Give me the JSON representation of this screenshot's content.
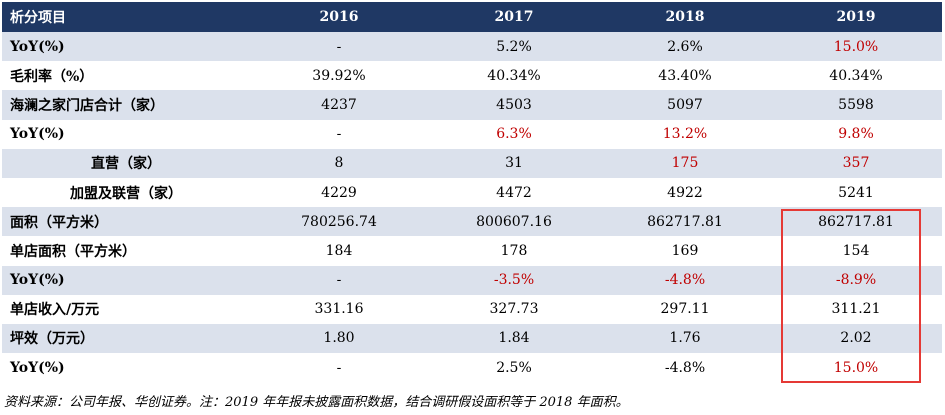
{
  "table": {
    "headers": [
      "析分项目",
      "2016",
      "2017",
      "2018",
      "2019"
    ],
    "rows": [
      {
        "label": "YoY(%)",
        "cells": [
          "-",
          "5.2%",
          "2.6%",
          "15.0%"
        ],
        "red": [
          false,
          false,
          false,
          true
        ]
      },
      {
        "label": "毛利率（%）",
        "cells": [
          "39.92%",
          "40.34%",
          "43.40%",
          "40.34%"
        ],
        "red": [
          false,
          false,
          false,
          false
        ]
      },
      {
        "label": "海澜之家门店合计（家）",
        "cells": [
          "4237",
          "4503",
          "5097",
          "5598"
        ],
        "red": [
          false,
          false,
          false,
          false
        ]
      },
      {
        "label": "YoY(%)",
        "cells": [
          "-",
          "6.3%",
          "13.2%",
          "9.8%"
        ],
        "red": [
          false,
          true,
          true,
          true
        ]
      },
      {
        "label": "直营（家）",
        "cells": [
          "8",
          "31",
          "175",
          "357"
        ],
        "red": [
          false,
          false,
          true,
          true
        ]
      },
      {
        "label": "加盟及联营（家）",
        "cells": [
          "4229",
          "4472",
          "4922",
          "5241"
        ],
        "red": [
          false,
          false,
          false,
          false
        ]
      },
      {
        "label": "面积（平方米）",
        "cells": [
          "780256.74",
          "800607.16",
          "862717.81",
          "862717.81"
        ],
        "red": [
          false,
          false,
          false,
          false
        ]
      },
      {
        "label": "单店面积（平方米）",
        "cells": [
          "184",
          "178",
          "169",
          "154"
        ],
        "red": [
          false,
          false,
          false,
          false
        ]
      },
      {
        "label": "YoY(%)",
        "cells": [
          "-",
          "-3.5%",
          "-4.8%",
          "-8.9%"
        ],
        "red": [
          false,
          true,
          true,
          true
        ]
      },
      {
        "label": "单店收入/万元",
        "cells": [
          "331.16",
          "327.73",
          "297.11",
          "311.21"
        ],
        "red": [
          false,
          false,
          false,
          false
        ]
      },
      {
        "label": "坪效（万元）",
        "cells": [
          "1.80",
          "1.84",
          "1.76",
          "2.02"
        ],
        "red": [
          false,
          false,
          false,
          false
        ]
      },
      {
        "label": "YoY(%)",
        "cells": [
          "-",
          "2.5%",
          "-4.8%",
          "15.0%"
        ],
        "red": [
          false,
          false,
          false,
          true
        ]
      }
    ]
  },
  "highlight_color": "#e53935",
  "accent_color": "#c00000",
  "header_color": "#1f3864",
  "source_note": "资料来源：公司年报、华创证券。注：2019 年年报未披露面积数据，结合调研假设面积等于 2018 年面积。"
}
